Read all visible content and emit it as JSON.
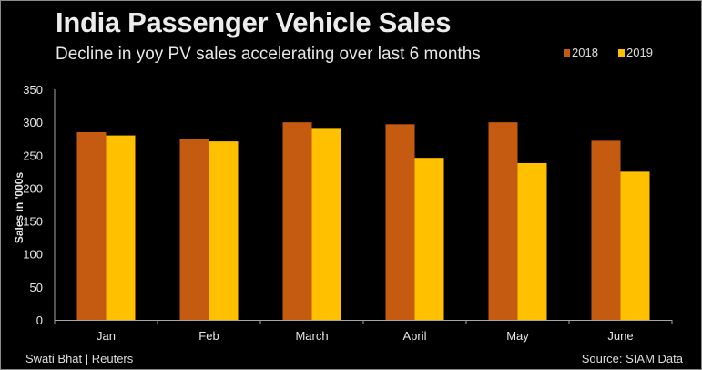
{
  "header": {
    "title": "India Passenger Vehicle Sales",
    "subtitle": "Decline in yoy PV sales accelerating over last 6 months"
  },
  "footer": {
    "credit": "Swati Bhat | Reuters",
    "source": "Source: SIAM Data"
  },
  "colors": {
    "background": "#000000",
    "series_2018": "#C55A11",
    "series_2019": "#FFC000",
    "axis": "#A6A6A6",
    "text": "#E6E6E6"
  },
  "chart_data": {
    "type": "bar",
    "title": "India Passenger Vehicle Sales",
    "subtitle": "Decline in yoy PV sales accelerating over last 6 months",
    "xlabel": "",
    "ylabel": "Sales in '000s",
    "categories": [
      "Jan",
      "Feb",
      "March",
      "April",
      "May",
      "June"
    ],
    "series": [
      {
        "name": "2018",
        "color": "#C55A11",
        "values": [
          285,
          274,
          300,
          297,
          300,
          272
        ]
      },
      {
        "name": "2019",
        "color": "#FFC000",
        "values": [
          280,
          271,
          290,
          246,
          238,
          225
        ]
      }
    ],
    "ylim": [
      0,
      350
    ],
    "yticks": [
      0,
      50,
      100,
      150,
      200,
      250,
      300,
      350
    ],
    "grid": false,
    "legend": "top-right"
  }
}
